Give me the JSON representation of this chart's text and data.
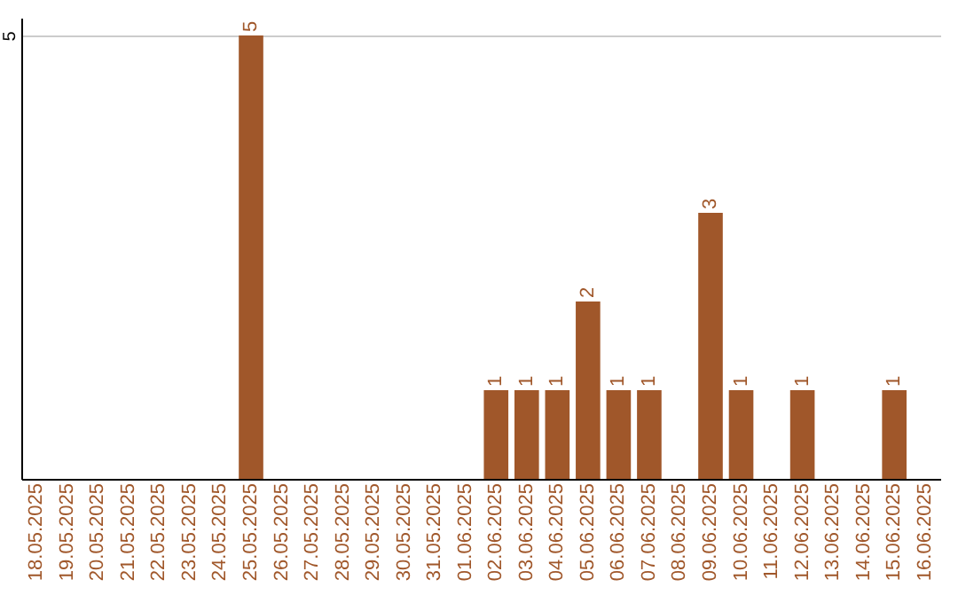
{
  "chart_data": {
    "type": "bar",
    "categories": [
      "18.05.2025",
      "19.05.2025",
      "20.05.2025",
      "21.05.2025",
      "22.05.2025",
      "23.05.2025",
      "24.05.2025",
      "25.05.2025",
      "26.05.2025",
      "27.05.2025",
      "28.05.2025",
      "29.05.2025",
      "30.05.2025",
      "31.05.2025",
      "01.06.2025",
      "02.06.2025",
      "03.06.2025",
      "04.06.2025",
      "05.06.2025",
      "06.06.2025",
      "07.06.2025",
      "08.06.2025",
      "09.06.2025",
      "10.06.2025",
      "11.06.2025",
      "12.06.2025",
      "13.06.2025",
      "14.06.2025",
      "15.06.2025",
      "16.06.2025"
    ],
    "values": [
      null,
      null,
      null,
      null,
      null,
      null,
      null,
      5,
      null,
      null,
      null,
      null,
      null,
      null,
      null,
      1,
      1,
      1,
      2,
      1,
      1,
      null,
      3,
      1,
      null,
      1,
      null,
      null,
      1,
      null
    ],
    "color": "#a0572a",
    "ylim": [
      0,
      5.2
    ],
    "yticks": [
      5
    ],
    "grid": "y",
    "data_labels": true
  }
}
